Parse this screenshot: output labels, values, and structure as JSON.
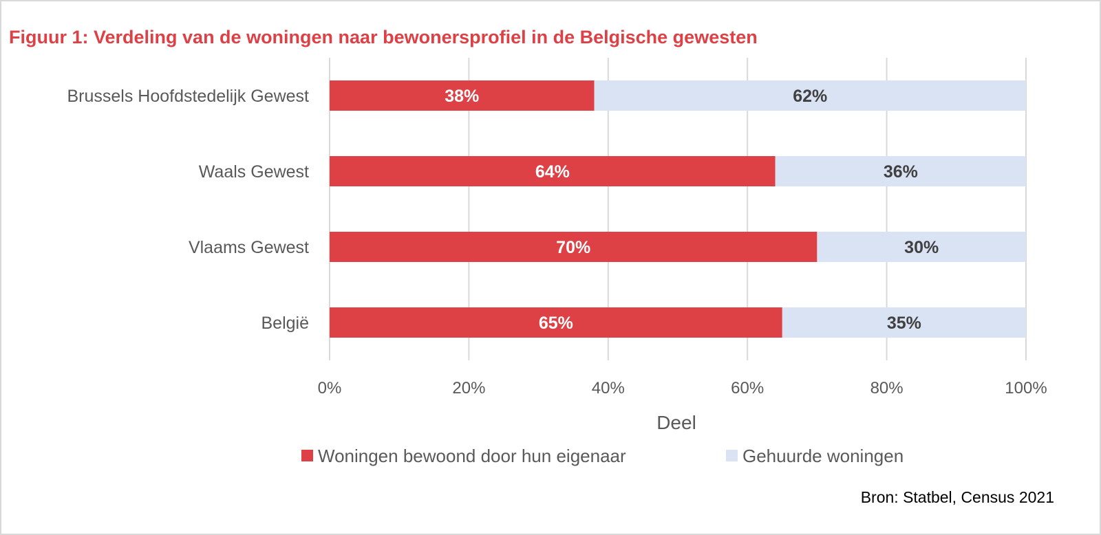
{
  "chart_data": {
    "type": "bar",
    "orientation": "horizontal",
    "stacked": true,
    "title": "Figuur 1: Verdeling van de woningen naar bewonersprofiel in de Belgische gewesten",
    "categories": [
      "Brussels Hoofdstedelijk Gewest",
      "Waals Gewest",
      "Vlaams Gewest",
      "België"
    ],
    "series": [
      {
        "name": "Woningen bewoond door hun eigenaar",
        "color": "#dd4145",
        "label_color": "#ffffff",
        "values": [
          38,
          64,
          70,
          65
        ],
        "labels": [
          "38%",
          "64%",
          "70%",
          "65%"
        ]
      },
      {
        "name": "Gehuurde woningen",
        "color": "#dae3f3",
        "label_color": "#404040",
        "values": [
          62,
          36,
          30,
          35
        ],
        "labels": [
          "62%",
          "36%",
          "30%",
          "35%"
        ]
      }
    ],
    "x_ticks": [
      0,
      20,
      40,
      60,
      80,
      100
    ],
    "x_tick_labels": [
      "0%",
      "20%",
      "40%",
      "60%",
      "80%",
      "100%"
    ],
    "xlim": [
      0,
      100
    ],
    "xlabel": "Deel",
    "ylabel": "",
    "grid": true,
    "legend_position": "bottom",
    "source": "Bron: Statbel, Census 2021"
  }
}
